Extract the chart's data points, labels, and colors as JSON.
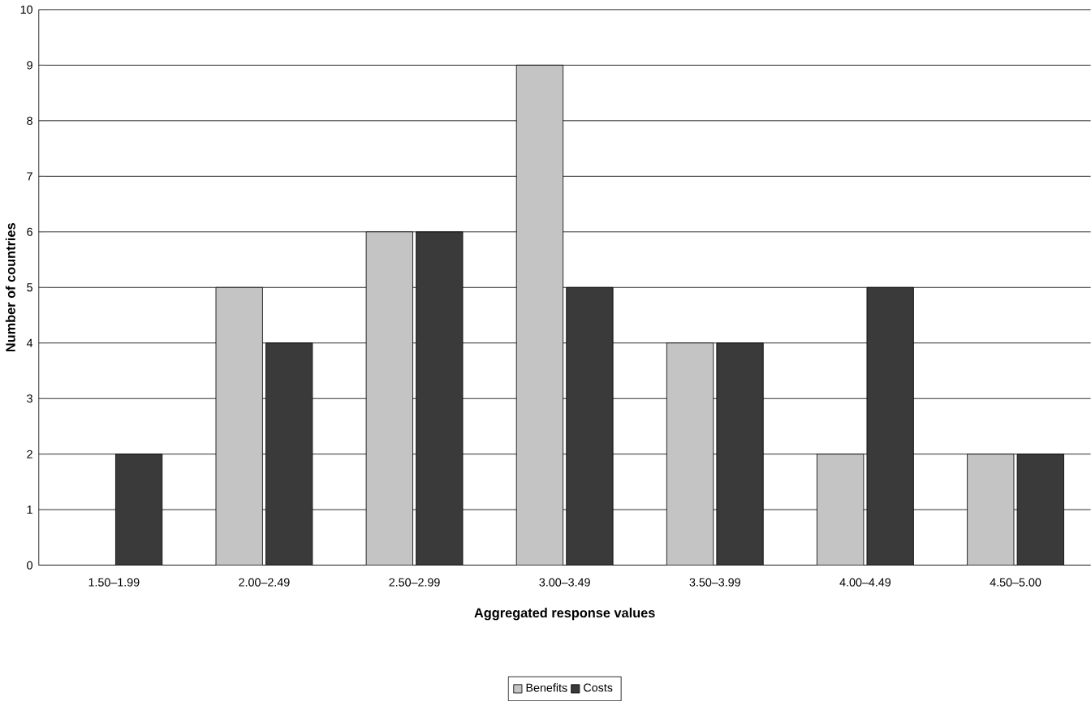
{
  "chart_data": {
    "type": "bar",
    "categories": [
      "1.50–1.99",
      "2.00–2.49",
      "2.50–2.99",
      "3.00–3.49",
      "3.50–3.99",
      "4.00–4.49",
      "4.50–5.00"
    ],
    "series": [
      {
        "name": "Benefits",
        "color": "#c4c4c4",
        "values": [
          null,
          5,
          6,
          9,
          4,
          2,
          2
        ]
      },
      {
        "name": "Costs",
        "color": "#3a3a3a",
        "values": [
          2,
          4,
          6,
          5,
          4,
          5,
          2
        ]
      }
    ],
    "xlabel": "Aggregated response values",
    "ylabel": "Number of countries",
    "ylim": [
      0,
      10
    ],
    "yticks": [
      0,
      1,
      2,
      3,
      4,
      5,
      6,
      7,
      8,
      9,
      10
    ],
    "grid": "y",
    "legend": "bottom"
  }
}
